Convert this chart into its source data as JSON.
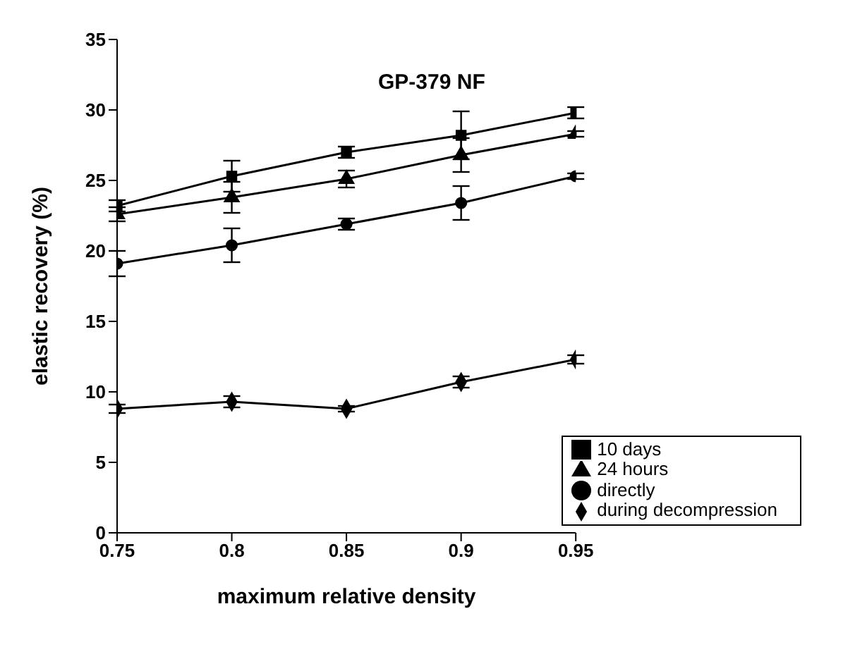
{
  "chart_data": {
    "type": "line",
    "title": "GP-379 NF",
    "xlabel": "maximum relative density",
    "ylabel": "elastic recovery (%)",
    "x": [
      0.75,
      0.8,
      0.85,
      0.9,
      0.95
    ],
    "xlim": [
      0.75,
      0.95
    ],
    "xticks": [
      0.75,
      0.8,
      0.85,
      0.9,
      0.95
    ],
    "ylim": [
      0,
      35
    ],
    "yticks": [
      0,
      5,
      10,
      15,
      20,
      25,
      30,
      35
    ],
    "grid": false,
    "legend": "bottom right",
    "line_style": "solid",
    "series": [
      {
        "name": "10 days",
        "color": "#000000",
        "marker": "square",
        "values": [
          23.2,
          25.3,
          27.0,
          28.2,
          29.8
        ],
        "errors": [
          0.4,
          1.1,
          0.4,
          1.7,
          0.4
        ]
      },
      {
        "name": "24 hours",
        "color": "#000000",
        "marker": "triangle",
        "values": [
          22.6,
          23.8,
          25.1,
          26.8,
          28.3
        ],
        "errors": [
          0.5,
          1.1,
          0.6,
          1.2,
          0.2
        ]
      },
      {
        "name": "directly",
        "color": "#000000",
        "marker": "circle",
        "values": [
          19.1,
          20.4,
          21.9,
          23.4,
          25.3
        ],
        "errors": [
          0.9,
          1.2,
          0.4,
          1.2,
          0.2
        ]
      },
      {
        "name": "during decompression",
        "color": "#000000",
        "marker": "diamond",
        "values": [
          8.8,
          9.3,
          8.8,
          10.7,
          12.3
        ],
        "errors": [
          0.3,
          0.4,
          0.2,
          0.4,
          0.3
        ]
      }
    ]
  }
}
